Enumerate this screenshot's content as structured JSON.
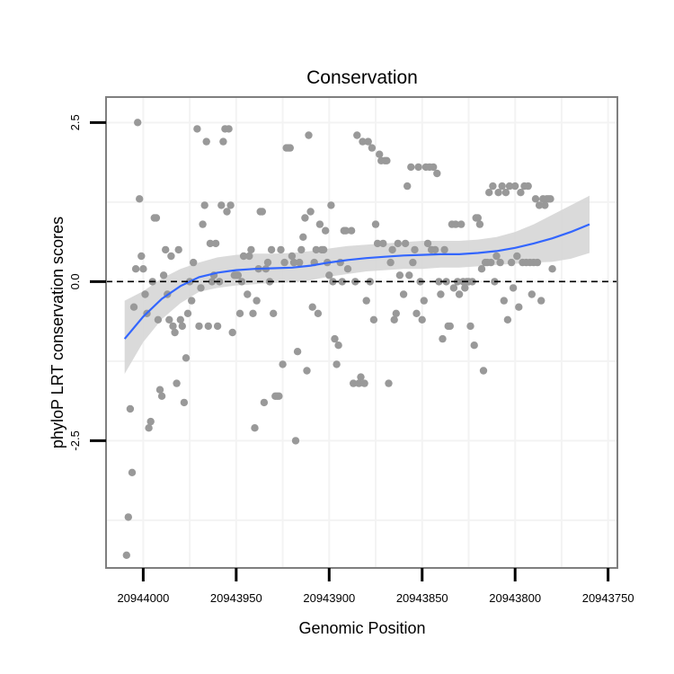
{
  "chart_data": {
    "type": "scatter",
    "title": "Conservation",
    "xlabel": "Genomic Position",
    "ylabel": "phyloP LRT conservation scores",
    "x_reversed": true,
    "xlim": [
      20944020,
      20943745
    ],
    "ylim": [
      -4.5,
      2.9
    ],
    "x_ticks": [
      20944000,
      20943950,
      20943900,
      20943850,
      20943800,
      20943750
    ],
    "x_tick_labels": [
      "20944000",
      "20943950",
      "20943900",
      "20943850",
      "20943800",
      "20943750"
    ],
    "y_ticks": [
      2.5,
      0.0,
      -2.5
    ],
    "y_tick_labels": [
      "2.5",
      "0.0",
      "-2.5"
    ],
    "reference_line": {
      "y": 0,
      "style": "dashed"
    },
    "grid": true,
    "colors": {
      "points": "#999999",
      "smooth_line": "#3366FF",
      "ribbon": "#D3D3D3",
      "panel_border": "#7F7F7F",
      "grid": "#F3F3F3"
    },
    "points": [
      [
        20944009,
        -4.3
      ],
      [
        20944008,
        -3.7
      ],
      [
        20944007,
        -2.0
      ],
      [
        20944006,
        -3.0
      ],
      [
        20944005,
        -0.4
      ],
      [
        20944004,
        0.2
      ],
      [
        20944003,
        2.5
      ],
      [
        20944002,
        1.3
      ],
      [
        20944001,
        0.4
      ],
      [
        20944000,
        0.2
      ],
      [
        20943999,
        -0.2
      ],
      [
        20943998,
        -0.5
      ],
      [
        20943997,
        -2.3
      ],
      [
        20943996,
        -2.2
      ],
      [
        20943995,
        0.0
      ],
      [
        20943994,
        1.0
      ],
      [
        20943993,
        1.0
      ],
      [
        20943992,
        -0.6
      ],
      [
        20943991,
        -1.7
      ],
      [
        20943990,
        -1.8
      ],
      [
        20943989,
        0.1
      ],
      [
        20943988,
        0.5
      ],
      [
        20943987,
        -0.2
      ],
      [
        20943986,
        -0.6
      ],
      [
        20943985,
        0.4
      ],
      [
        20943984,
        -0.7
      ],
      [
        20943983,
        -0.8
      ],
      [
        20943982,
        -1.6
      ],
      [
        20943981,
        0.5
      ],
      [
        20943980,
        -0.6
      ],
      [
        20943979,
        -0.7
      ],
      [
        20943978,
        -1.9
      ],
      [
        20943977,
        -1.2
      ],
      [
        20943976,
        -0.5
      ],
      [
        20943975,
        0.0
      ],
      [
        20943974,
        -0.3
      ],
      [
        20943973,
        0.3
      ],
      [
        20943971,
        2.4
      ],
      [
        20943970,
        -0.7
      ],
      [
        20943969,
        -0.1
      ],
      [
        20943968,
        0.9
      ],
      [
        20943967,
        1.2
      ],
      [
        20943966,
        2.2
      ],
      [
        20943965,
        -0.7
      ],
      [
        20943964,
        0.6
      ],
      [
        20943963,
        0.0
      ],
      [
        20943962,
        0.1
      ],
      [
        20943961,
        0.6
      ],
      [
        20943960,
        -0.7
      ],
      [
        20943959,
        0.0
      ],
      [
        20943958,
        1.2
      ],
      [
        20943957,
        2.2
      ],
      [
        20943956,
        2.4
      ],
      [
        20943955,
        1.1
      ],
      [
        20943954,
        2.4
      ],
      [
        20943953,
        1.2
      ],
      [
        20943952,
        -0.8
      ],
      [
        20943951,
        0.1
      ],
      [
        20943950,
        0.1
      ],
      [
        20943949,
        0.1
      ],
      [
        20943948,
        -0.5
      ],
      [
        20943947,
        0.0
      ],
      [
        20943946,
        0.4
      ],
      [
        20943944,
        -0.2
      ],
      [
        20943943,
        0.4
      ],
      [
        20943942,
        0.5
      ],
      [
        20943941,
        -0.5
      ],
      [
        20943940,
        -2.3
      ],
      [
        20943939,
        -0.3
      ],
      [
        20943938,
        0.2
      ],
      [
        20943937,
        1.1
      ],
      [
        20943936,
        1.1
      ],
      [
        20943935,
        -1.9
      ],
      [
        20943934,
        0.2
      ],
      [
        20943933,
        0.3
      ],
      [
        20943932,
        0.0
      ],
      [
        20943931,
        0.5
      ],
      [
        20943930,
        -0.5
      ],
      [
        20943929,
        -1.8
      ],
      [
        20943928,
        -1.8
      ],
      [
        20943927,
        -1.8
      ],
      [
        20943926,
        0.5
      ],
      [
        20943925,
        -1.3
      ],
      [
        20943924,
        0.3
      ],
      [
        20943923,
        2.1
      ],
      [
        20943922,
        2.1
      ],
      [
        20943921,
        2.1
      ],
      [
        20943920,
        0.4
      ],
      [
        20943919,
        0.3
      ],
      [
        20943918,
        -2.5
      ],
      [
        20943917,
        -1.1
      ],
      [
        20943916,
        0.3
      ],
      [
        20943915,
        0.5
      ],
      [
        20943914,
        0.7
      ],
      [
        20943913,
        1.0
      ],
      [
        20943912,
        -1.4
      ],
      [
        20943911,
        2.3
      ],
      [
        20943910,
        1.1
      ],
      [
        20943909,
        -0.4
      ],
      [
        20943908,
        0.3
      ],
      [
        20943907,
        0.5
      ],
      [
        20943906,
        -0.5
      ],
      [
        20943905,
        0.9
      ],
      [
        20943904,
        0.5
      ],
      [
        20943903,
        0.5
      ],
      [
        20943902,
        0.8
      ],
      [
        20943901,
        0.3
      ],
      [
        20943900,
        0.1
      ],
      [
        20943899,
        1.2
      ],
      [
        20943898,
        0.0
      ],
      [
        20943897,
        -0.9
      ],
      [
        20943896,
        -1.3
      ],
      [
        20943895,
        -1.0
      ],
      [
        20943894,
        0.3
      ],
      [
        20943893,
        0.0
      ],
      [
        20943892,
        0.8
      ],
      [
        20943891,
        0.8
      ],
      [
        20943890,
        0.2
      ],
      [
        20943888,
        0.8
      ],
      [
        20943887,
        -1.6
      ],
      [
        20943886,
        0.0
      ],
      [
        20943885,
        2.3
      ],
      [
        20943884,
        -1.6
      ],
      [
        20943883,
        -1.5
      ],
      [
        20943882,
        2.2
      ],
      [
        20943881,
        -1.6
      ],
      [
        20943880,
        -0.3
      ],
      [
        20943879,
        2.2
      ],
      [
        20943878,
        0.0
      ],
      [
        20943877,
        2.1
      ],
      [
        20943876,
        -0.6
      ],
      [
        20943875,
        0.9
      ],
      [
        20943874,
        0.6
      ],
      [
        20943873,
        2.0
      ],
      [
        20943872,
        1.9
      ],
      [
        20943871,
        0.6
      ],
      [
        20943870,
        1.9
      ],
      [
        20943869,
        1.9
      ],
      [
        20943868,
        -1.6
      ],
      [
        20943867,
        0.3
      ],
      [
        20943866,
        0.5
      ],
      [
        20943865,
        -0.6
      ],
      [
        20943864,
        -0.5
      ],
      [
        20943863,
        0.6
      ],
      [
        20943862,
        0.1
      ],
      [
        20943860,
        -0.2
      ],
      [
        20943859,
        0.6
      ],
      [
        20943858,
        1.5
      ],
      [
        20943857,
        0.1
      ],
      [
        20943856,
        1.8
      ],
      [
        20943855,
        0.3
      ],
      [
        20943854,
        0.5
      ],
      [
        20943853,
        -0.5
      ],
      [
        20943852,
        1.8
      ],
      [
        20943851,
        0.0
      ],
      [
        20943850,
        -0.6
      ],
      [
        20943849,
        -0.3
      ],
      [
        20943848,
        1.8
      ],
      [
        20943847,
        0.6
      ],
      [
        20943846,
        1.8
      ],
      [
        20943845,
        0.5
      ],
      [
        20943844,
        1.8
      ],
      [
        20943843,
        0.5
      ],
      [
        20943842,
        1.7
      ],
      [
        20943841,
        0.0
      ],
      [
        20943840,
        -0.2
      ],
      [
        20943839,
        -0.9
      ],
      [
        20943838,
        0.5
      ],
      [
        20943837,
        0.0
      ],
      [
        20943836,
        -0.7
      ],
      [
        20943835,
        -0.7
      ],
      [
        20943834,
        0.9
      ],
      [
        20943833,
        -0.1
      ],
      [
        20943832,
        0.9
      ],
      [
        20943831,
        0.0
      ],
      [
        20943830,
        -0.2
      ],
      [
        20943829,
        0.9
      ],
      [
        20943828,
        0.0
      ],
      [
        20943827,
        -0.1
      ],
      [
        20943826,
        0.0
      ],
      [
        20943825,
        0.0
      ],
      [
        20943824,
        -0.7
      ],
      [
        20943823,
        0.0
      ],
      [
        20943822,
        -1.0
      ],
      [
        20943821,
        1.0
      ],
      [
        20943820,
        1.0
      ],
      [
        20943819,
        0.9
      ],
      [
        20943818,
        0.2
      ],
      [
        20943817,
        -1.4
      ],
      [
        20943816,
        0.3
      ],
      [
        20943815,
        0.3
      ],
      [
        20943814,
        1.4
      ],
      [
        20943813,
        0.3
      ],
      [
        20943812,
        1.5
      ],
      [
        20943811,
        0.0
      ],
      [
        20943810,
        0.4
      ],
      [
        20943809,
        1.4
      ],
      [
        20943808,
        0.3
      ],
      [
        20943807,
        1.5
      ],
      [
        20943806,
        -0.3
      ],
      [
        20943805,
        1.4
      ],
      [
        20943804,
        -0.6
      ],
      [
        20943803,
        1.5
      ],
      [
        20943802,
        0.3
      ],
      [
        20943801,
        -0.1
      ],
      [
        20943800,
        1.5
      ],
      [
        20943799,
        0.4
      ],
      [
        20943798,
        -0.4
      ],
      [
        20943797,
        1.4
      ],
      [
        20943796,
        0.3
      ],
      [
        20943795,
        1.5
      ],
      [
        20943794,
        0.3
      ],
      [
        20943793,
        1.5
      ],
      [
        20943792,
        0.3
      ],
      [
        20943791,
        -0.2
      ],
      [
        20943790,
        0.3
      ],
      [
        20943789,
        1.3
      ],
      [
        20943788,
        0.3
      ],
      [
        20943787,
        1.2
      ],
      [
        20943786,
        -0.3
      ],
      [
        20943785,
        1.3
      ],
      [
        20943784,
        1.2
      ],
      [
        20943783,
        1.3
      ],
      [
        20943782,
        1.3
      ],
      [
        20943781,
        1.3
      ],
      [
        20943780,
        0.2
      ]
    ],
    "smooth": {
      "x": [
        20944010,
        20944000,
        20943990,
        20943980,
        20943970,
        20943960,
        20943950,
        20943940,
        20943930,
        20943920,
        20943910,
        20943900,
        20943890,
        20943880,
        20943870,
        20943860,
        20943850,
        20943840,
        20943830,
        20943820,
        20943810,
        20943800,
        20943790,
        20943780,
        20943770,
        20943760
      ],
      "y": [
        -0.9,
        -0.55,
        -0.27,
        -0.07,
        0.07,
        0.14,
        0.18,
        0.2,
        0.21,
        0.22,
        0.25,
        0.3,
        0.34,
        0.37,
        0.39,
        0.41,
        0.42,
        0.43,
        0.43,
        0.45,
        0.48,
        0.53,
        0.6,
        0.68,
        0.78,
        0.9
      ],
      "upper": [
        -0.3,
        -0.15,
        0.05,
        0.2,
        0.3,
        0.38,
        0.42,
        0.44,
        0.44,
        0.45,
        0.48,
        0.52,
        0.56,
        0.58,
        0.6,
        0.62,
        0.64,
        0.64,
        0.64,
        0.66,
        0.7,
        0.78,
        0.9,
        1.05,
        1.2,
        1.35
      ],
      "lower": [
        -1.45,
        -0.95,
        -0.59,
        -0.34,
        -0.16,
        -0.1,
        -0.06,
        -0.04,
        -0.02,
        -0.01,
        0.02,
        0.08,
        0.12,
        0.16,
        0.18,
        0.2,
        0.2,
        0.22,
        0.22,
        0.24,
        0.26,
        0.28,
        0.3,
        0.31,
        0.36,
        0.45
      ]
    }
  }
}
